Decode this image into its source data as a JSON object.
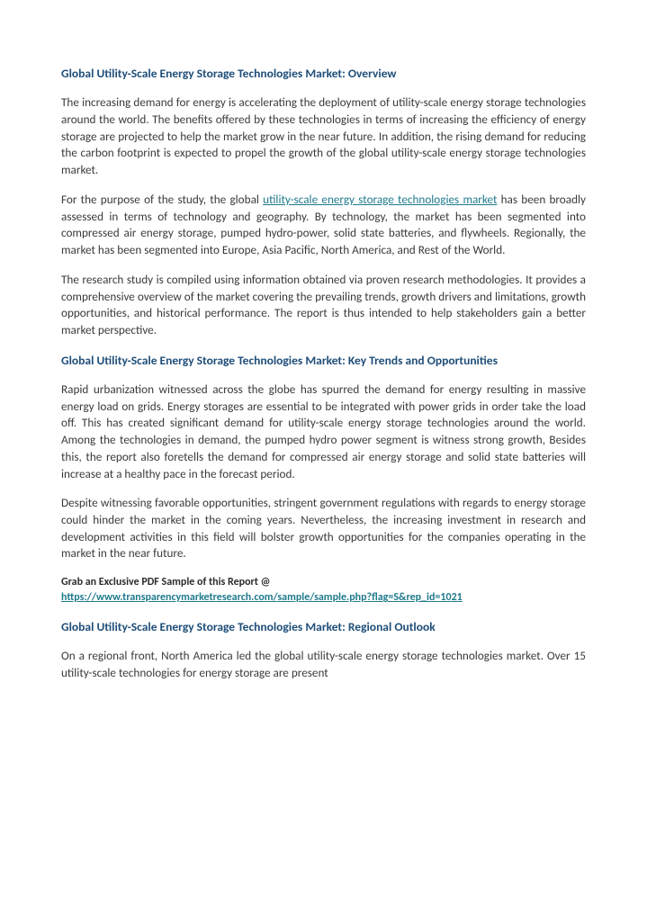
{
  "h1": "Global Utility-Scale Energy Storage Technologies Market: Overview",
  "p1": "The increasing demand for energy is accelerating the deployment of utility-scale energy storage technologies around the world. The benefits offered by these technologies in terms of increasing the efficiency of energy storage are projected to help the market grow in the near future. In addition, the rising demand for reducing the carbon footprint is expected to propel the growth of the global utility-scale energy storage technologies market.",
  "p2_pre": "For the purpose of the study, the global ",
  "p2_link": "utility-scale energy storage technologies market",
  "p2_post": " has been broadly assessed in terms of technology and geography. By technology, the market has been segmented into compressed air energy storage, pumped hydro-power, solid state batteries, and flywheels. Regionally, the market has been segmented into Europe, Asia Pacific, North America, and Rest of the World.",
  "p3": "The research study is compiled using information obtained via proven research methodologies. It provides a comprehensive overview of the market covering the prevailing trends, growth drivers and limitations, growth opportunities, and historical performance. The report is thus intended to help stakeholders gain a better market perspective.",
  "h2": "Global Utility-Scale Energy Storage Technologies Market: Key Trends and Opportunities",
  "p4": "Rapid urbanization witnessed across the globe has spurred the demand for energy resulting in massive energy load on grids. Energy storages are essential to be integrated with power grids in order take the load off. This has created significant demand for utility-scale energy storage technologies around the world. Among the technologies in demand, the pumped hydro power segment is witness strong growth, Besides this, the report also foretells the demand for compressed air energy storage and solid state batteries will increase at a healthy pace in the forecast period.",
  "p5": "Despite witnessing favorable opportunities, stringent government regulations with regards to energy storage could hinder the market in the coming years. Nevertheless, the increasing investment in research and development activities in this field will bolster growth opportunities for the companies operating in the market in the near future.",
  "grab": "Grab an Exclusive PDF Sample of this Report @",
  "url": "https://www.transparencymarketresearch.com/sample/sample.php?flag=S&rep_id=1021",
  "h3": "Global Utility-Scale Energy Storage Technologies Market: Regional Outlook",
  "p6": "On a regional front, North America led the global utility-scale energy storage technologies market. Over 15 utility-scale technologies for energy storage are present"
}
